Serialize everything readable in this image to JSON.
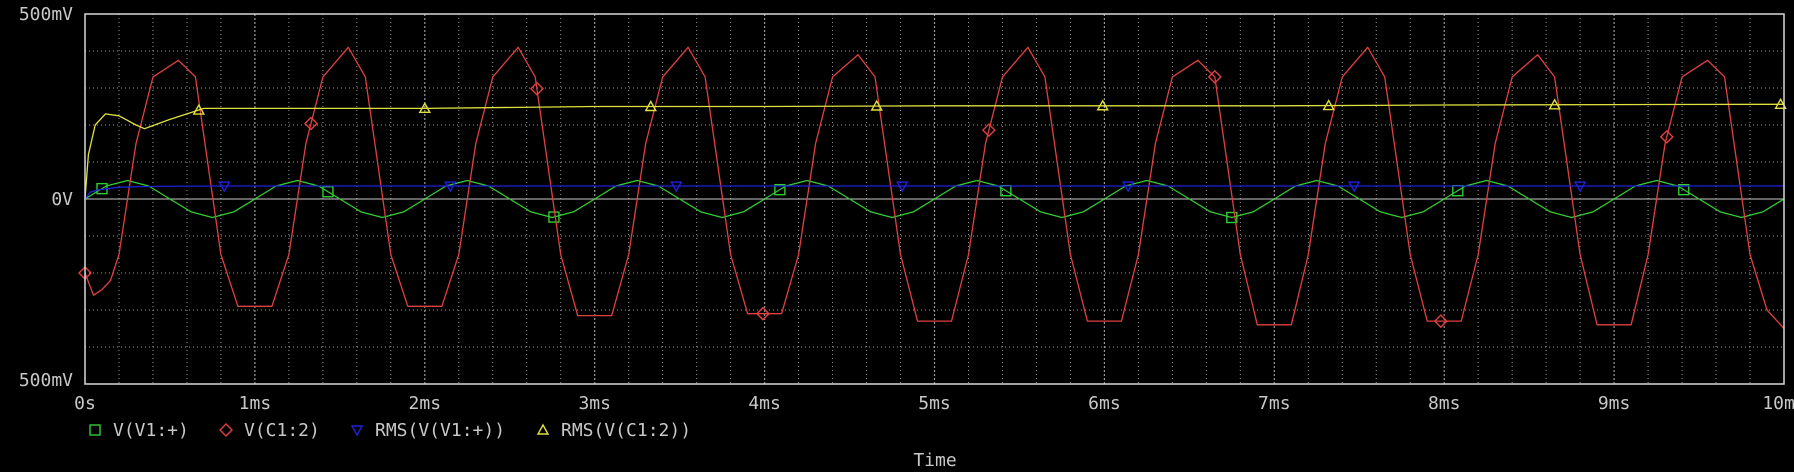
{
  "colors": {
    "background": "#000000",
    "frame": "#d8d8d8",
    "grid": "#9a9a9a",
    "text": "#c8c8c8"
  },
  "chart_data": {
    "type": "line",
    "xlabel": "Time",
    "xlim": [
      0,
      10
    ],
    "ylim": [
      -500,
      500
    ],
    "grid": true,
    "legend_placement": "bottom-left",
    "x_ticks": [
      {
        "value": 0,
        "label": "0s"
      },
      {
        "value": 1,
        "label": "1ms"
      },
      {
        "value": 2,
        "label": "2ms"
      },
      {
        "value": 3,
        "label": "3ms"
      },
      {
        "value": 4,
        "label": "4ms"
      },
      {
        "value": 5,
        "label": "5ms"
      },
      {
        "value": 6,
        "label": "6ms"
      },
      {
        "value": 7,
        "label": "7ms"
      },
      {
        "value": 8,
        "label": "8ms"
      },
      {
        "value": 9,
        "label": "9ms"
      },
      {
        "value": 10,
        "label": "10ms"
      }
    ],
    "y_ticks": [
      {
        "value": 500,
        "label": "500mV"
      },
      {
        "value": 0,
        "label": "0V"
      },
      {
        "value": -500,
        "label": "500mV"
      }
    ],
    "series": [
      {
        "name": "V(V1:+)",
        "color": "#33cc33",
        "marker": "square",
        "x": [
          0,
          0.125,
          0.25,
          0.375,
          0.5,
          0.625,
          0.75,
          0.875,
          1,
          1.125,
          1.25,
          1.375,
          1.5,
          1.625,
          1.75,
          1.875,
          2,
          2.125,
          2.25,
          2.375,
          2.5,
          2.625,
          2.75,
          2.875,
          3,
          3.125,
          3.25,
          3.375,
          3.5,
          3.625,
          3.75,
          3.875,
          4,
          4.125,
          4.25,
          4.375,
          4.5,
          4.625,
          4.75,
          4.875,
          5,
          5.125,
          5.25,
          5.375,
          5.5,
          5.625,
          5.75,
          5.875,
          6,
          6.125,
          6.25,
          6.375,
          6.5,
          6.625,
          6.75,
          6.875,
          7,
          7.125,
          7.25,
          7.375,
          7.5,
          7.625,
          7.75,
          7.875,
          8,
          8.125,
          8.25,
          8.375,
          8.5,
          8.625,
          8.75,
          8.875,
          9,
          9.125,
          9.25,
          9.375,
          9.5,
          9.625,
          9.75,
          9.875,
          10
        ],
        "y": [
          0,
          35,
          50,
          35,
          0,
          -35,
          -50,
          -35,
          0,
          35,
          50,
          35,
          0,
          -35,
          -50,
          -35,
          0,
          35,
          50,
          35,
          0,
          -35,
          -50,
          -35,
          0,
          35,
          50,
          35,
          0,
          -35,
          -50,
          -35,
          0,
          35,
          50,
          35,
          0,
          -35,
          -50,
          -35,
          0,
          35,
          50,
          35,
          0,
          -35,
          -50,
          -35,
          0,
          35,
          50,
          35,
          0,
          -35,
          -50,
          -35,
          0,
          35,
          50,
          35,
          0,
          -35,
          -50,
          -35,
          0,
          35,
          50,
          35,
          0,
          -35,
          -50,
          -35,
          0,
          35,
          50,
          35,
          0,
          -35,
          -50,
          -35,
          0
        ]
      },
      {
        "name": "V(C1:2)",
        "color": "#e04040",
        "marker": "diamond",
        "x": [
          0,
          0.05,
          0.1,
          0.15,
          0.2,
          0.3,
          0.4,
          0.55,
          0.65,
          0.8,
          0.9,
          1.1,
          1.2,
          1.3,
          1.4,
          1.55,
          1.65,
          1.8,
          1.9,
          2.1,
          2.2,
          2.3,
          2.4,
          2.55,
          2.65,
          2.8,
          2.9,
          3.1,
          3.2,
          3.3,
          3.4,
          3.55,
          3.65,
          3.8,
          3.9,
          4.1,
          4.2,
          4.3,
          4.4,
          4.55,
          4.65,
          4.8,
          4.9,
          5.1,
          5.2,
          5.3,
          5.4,
          5.55,
          5.65,
          5.8,
          5.9,
          6.1,
          6.2,
          6.3,
          6.4,
          6.55,
          6.65,
          6.8,
          6.9,
          7.1,
          7.2,
          7.3,
          7.4,
          7.55,
          7.65,
          7.8,
          7.9,
          8.1,
          8.2,
          8.3,
          8.4,
          8.55,
          8.65,
          8.8,
          8.9,
          9.1,
          9.2,
          9.3,
          9.4,
          9.55,
          9.65,
          9.8,
          9.9,
          10
        ],
        "y": [
          -200,
          -260,
          -245,
          -220,
          -150,
          150,
          330,
          375,
          330,
          -150,
          -290,
          -290,
          -150,
          150,
          330,
          410,
          330,
          -150,
          -290,
          -290,
          -150,
          150,
          330,
          410,
          330,
          -150,
          -315,
          -315,
          -150,
          150,
          330,
          410,
          330,
          -150,
          -310,
          -310,
          -150,
          150,
          330,
          390,
          330,
          -150,
          -330,
          -330,
          -150,
          150,
          330,
          410,
          330,
          -150,
          -330,
          -330,
          -150,
          150,
          330,
          375,
          330,
          -150,
          -340,
          -340,
          -150,
          150,
          330,
          410,
          330,
          -150,
          -330,
          -330,
          -150,
          150,
          330,
          390,
          330,
          -150,
          -340,
          -340,
          -150,
          150,
          330,
          375,
          330,
          -150,
          -300,
          -350
        ]
      },
      {
        "name": "RMS(V(V1:+))",
        "color": "#2020dd",
        "marker": "triangle-down",
        "x": [
          0,
          0.03,
          0.08,
          0.2,
          0.4,
          0.8,
          2,
          4,
          6,
          8,
          10
        ],
        "y": [
          0,
          18,
          25,
          32,
          34,
          35,
          35,
          35,
          35,
          35,
          35
        ]
      },
      {
        "name": "RMS(V(C1:2))",
        "color": "#e0e040",
        "marker": "triangle-up",
        "x": [
          0,
          0.02,
          0.06,
          0.12,
          0.2,
          0.3,
          0.35,
          0.5,
          0.7,
          1,
          1.5,
          2,
          3,
          4,
          5,
          6,
          7,
          8,
          9,
          10
        ],
        "y": [
          0,
          120,
          200,
          230,
          225,
          200,
          190,
          215,
          245,
          245,
          245,
          245,
          250,
          250,
          252,
          252,
          252,
          254,
          255,
          256
        ]
      }
    ]
  }
}
